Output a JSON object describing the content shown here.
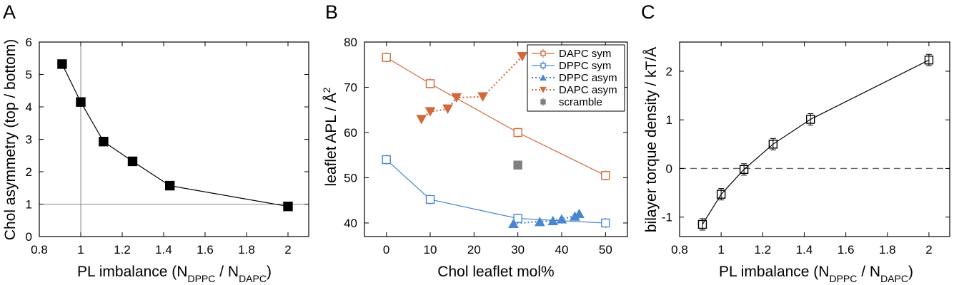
{
  "colors": {
    "dapc": "#d2693c",
    "dppc": "#4a86cf",
    "scramble": "#808080",
    "black": "#000000"
  },
  "chart_data": [
    {
      "panel": "A",
      "type": "line",
      "xlabel_parts": [
        "PL imbalance (N",
        "DPPC",
        " / N",
        "DAPC",
        ")"
      ],
      "ylabel": "Chol asymmetry (top / bottom)",
      "xlim": [
        0.8,
        2.1
      ],
      "ylim": [
        0,
        6
      ],
      "xticks": [
        "0.8",
        "1",
        "1.2",
        "1.4",
        "1.6",
        "1.8",
        "2"
      ],
      "yticks": [
        "0",
        "1",
        "2",
        "3",
        "4",
        "5",
        "6"
      ],
      "reference_lines": {
        "x": 1,
        "y": 1
      },
      "series": [
        {
          "x": [
            0.91,
            1.0,
            1.11,
            1.25,
            1.43,
            2.0
          ],
          "y": [
            5.32,
            4.15,
            2.93,
            2.32,
            1.57,
            0.93
          ],
          "marker": "filled-square"
        }
      ]
    },
    {
      "panel": "B",
      "type": "line",
      "xlabel": "Chol leaflet mol%",
      "ylabel_parts": [
        "leaflet APL / Å",
        "2"
      ],
      "xlim": [
        -5,
        55
      ],
      "ylim": [
        37,
        80
      ],
      "xticks": [
        "0",
        "10",
        "20",
        "30",
        "40",
        "50"
      ],
      "yticks": [
        "40",
        "50",
        "60",
        "70",
        "80"
      ],
      "legend": {
        "position": "top-right",
        "entries": [
          "DAPC sym",
          "DPPC sym",
          "DPPC asym",
          "DAPC asym",
          "scramble"
        ]
      },
      "series": [
        {
          "name": "DAPC sym",
          "x": [
            0,
            10,
            30,
            50
          ],
          "y": [
            76.6,
            70.8,
            60.0,
            50.5
          ],
          "marker": "open-square",
          "style": "solid",
          "color": "dapc"
        },
        {
          "name": "DPPC sym",
          "x": [
            0,
            10,
            30,
            50
          ],
          "y": [
            54.0,
            45.2,
            41.0,
            40.0
          ],
          "marker": "open-square",
          "style": "solid",
          "color": "dppc"
        },
        {
          "name": "DPPC asym",
          "x": [
            29,
            35,
            38,
            40,
            43,
            44
          ],
          "y": [
            39.9,
            40.3,
            40.5,
            40.9,
            41.5,
            42.1
          ],
          "marker": "triangle-up",
          "style": "dotted",
          "color": "dppc"
        },
        {
          "name": "DAPC asym",
          "x": [
            8,
            10,
            14,
            16,
            22,
            31
          ],
          "y": [
            62.9,
            64.6,
            65.2,
            67.7,
            67.9,
            76.8
          ],
          "marker": "triangle-down",
          "style": "dotted",
          "color": "dapc"
        },
        {
          "name": "scramble",
          "x": [
            30
          ],
          "y": [
            52.8
          ],
          "marker": "filled-square",
          "style": "none",
          "color": "scramble"
        }
      ]
    },
    {
      "panel": "C",
      "type": "line",
      "xlabel_parts": [
        "PL imbalance (N",
        "DPPC",
        " / N",
        "DAPC",
        ")"
      ],
      "ylabel": "bilayer torque density / kT/Å",
      "xlim": [
        0.8,
        2.1
      ],
      "ylim": [
        -1.4,
        2.6
      ],
      "xticks": [
        "0.8",
        "1",
        "1.2",
        "1.4",
        "1.6",
        "1.8",
        "2"
      ],
      "yticks": [
        "-1",
        "0",
        "1",
        "2"
      ],
      "reference_lines": {
        "y": 0
      },
      "series": [
        {
          "x": [
            0.91,
            1.0,
            1.11,
            1.25,
            1.43,
            2.0
          ],
          "y": [
            -1.15,
            -0.53,
            -0.02,
            0.5,
            1.01,
            2.23
          ],
          "marker": "open-square-errorbar"
        }
      ]
    }
  ]
}
